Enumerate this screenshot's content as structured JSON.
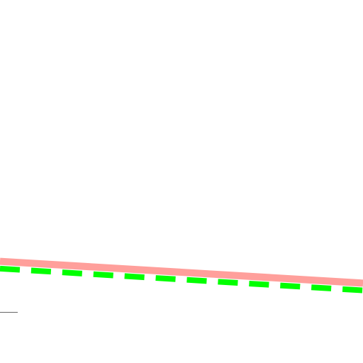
{
  "chart_data": {
    "type": "line",
    "title": "",
    "xlabel": "",
    "ylabel": "",
    "grid": false,
    "legend": "none",
    "x": [
      0,
      1
    ],
    "series": [
      {
        "values": [
          0.28,
          0.22
        ],
        "color": "#ff9f9b",
        "style": "solid"
      },
      {
        "values": [
          0.26,
          0.2
        ],
        "color": "#00ff00",
        "style": "dashed"
      }
    ],
    "xlim": [
      0,
      1
    ],
    "ylim": [
      0,
      1
    ]
  }
}
